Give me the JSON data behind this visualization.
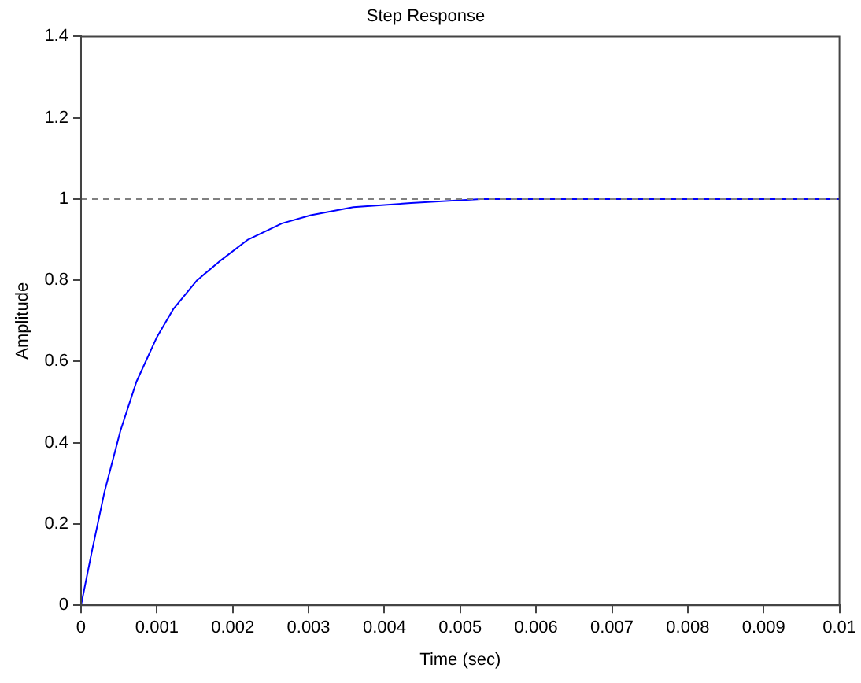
{
  "chart_data": {
    "type": "line",
    "title": "Step Response",
    "xlabel": "Time (sec)",
    "ylabel": "Amplitude",
    "series": [
      {
        "color": "#0000ff",
        "x": [
          0,
          0.00014,
          0.00031,
          0.00052,
          0.00073,
          0.001,
          0.00122,
          0.00153,
          0.00185,
          0.0022,
          0.00265,
          0.00303,
          0.00359,
          0.00435,
          0.00527,
          0.006,
          0.01
        ],
        "values": [
          0,
          0.13,
          0.28,
          0.43,
          0.55,
          0.66,
          0.73,
          0.8,
          0.85,
          0.9,
          0.94,
          0.96,
          0.98,
          0.99,
          1,
          1,
          1
        ]
      }
    ],
    "xlim": [
      0,
      0.01
    ],
    "xticks": [
      0,
      0.001,
      0.002,
      0.003,
      0.004,
      0.005,
      0.006,
      0.007,
      0.008,
      0.009,
      0.01
    ],
    "ylim": [
      0,
      1.4
    ],
    "yticks": [
      0,
      0.2,
      0.4,
      0.6,
      0.8,
      1,
      1.2,
      1.4
    ],
    "ref_lines": [
      {
        "axis": "y",
        "value": 1,
        "color": "#808080",
        "line_style": "dashed"
      }
    ],
    "grid": false,
    "legend": false,
    "marker": "none",
    "line_style": "solid"
  }
}
